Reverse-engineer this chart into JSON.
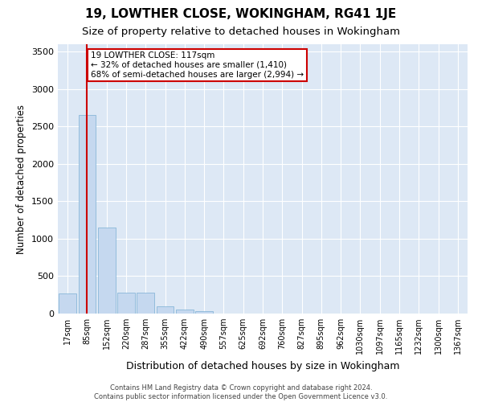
{
  "title": "19, LOWTHER CLOSE, WOKINGHAM, RG41 1JE",
  "subtitle": "Size of property relative to detached houses in Wokingham",
  "xlabel": "Distribution of detached houses by size in Wokingham",
  "ylabel": "Number of detached properties",
  "footer_line1": "Contains HM Land Registry data © Crown copyright and database right 2024.",
  "footer_line2": "Contains public sector information licensed under the Open Government Licence v3.0.",
  "categories": [
    "17sqm",
    "85sqm",
    "152sqm",
    "220sqm",
    "287sqm",
    "355sqm",
    "422sqm",
    "490sqm",
    "557sqm",
    "625sqm",
    "692sqm",
    "760sqm",
    "827sqm",
    "895sqm",
    "962sqm",
    "1030sqm",
    "1097sqm",
    "1165sqm",
    "1232sqm",
    "1300sqm",
    "1367sqm"
  ],
  "values": [
    270,
    2650,
    1150,
    280,
    280,
    95,
    55,
    35,
    0,
    0,
    0,
    0,
    0,
    0,
    0,
    0,
    0,
    0,
    0,
    0,
    0
  ],
  "bar_color": "#c5d8ef",
  "bar_edge_color": "#7aafd4",
  "vline_color": "#cc0000",
  "annotation_line1": "19 LOWTHER CLOSE: 117sqm",
  "annotation_line2": "← 32% of detached houses are smaller (1,410)",
  "annotation_line3": "68% of semi-detached houses are larger (2,994) →",
  "annotation_box_facecolor": "#ffffff",
  "annotation_box_edgecolor": "#cc0000",
  "plot_bg_color": "#dde8f5",
  "ylim": [
    0,
    3600
  ],
  "yticks": [
    0,
    500,
    1000,
    1500,
    2000,
    2500,
    3000,
    3500
  ],
  "title_fontsize": 11,
  "subtitle_fontsize": 9.5,
  "tick_fontsize": 7,
  "ylabel_fontsize": 8.5,
  "xlabel_fontsize": 9,
  "annotation_fontsize": 7.5,
  "footer_fontsize": 6
}
